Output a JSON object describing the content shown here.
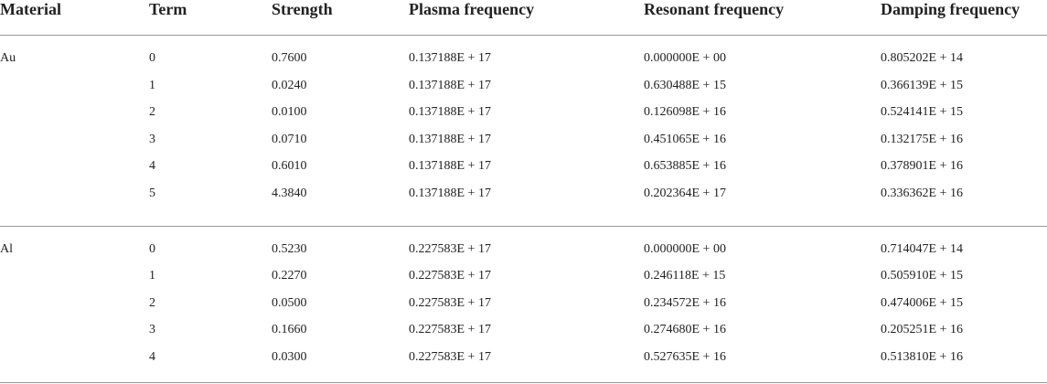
{
  "table": {
    "header": [
      "Material",
      "Term",
      "Strength",
      "Plasma frequency",
      "Resonant frequency",
      "Damping frequency"
    ],
    "groups": [
      {
        "material": "Au",
        "rows": [
          [
            "0",
            "0.7600",
            "0.137188E + 17",
            "0.000000E + 00",
            "0.805202E + 14"
          ],
          [
            "1",
            "0.0240",
            "0.137188E + 17",
            "0.630488E + 15",
            "0.366139E + 15"
          ],
          [
            "2",
            "0.0100",
            "0.137188E + 17",
            "0.126098E + 16",
            "0.524141E + 15"
          ],
          [
            "3",
            "0.0710",
            "0.137188E + 17",
            "0.451065E + 16",
            "0.132175E + 16"
          ],
          [
            "4",
            "0.6010",
            "0.137188E + 17",
            "0.653885E + 16",
            "0.378901E + 16"
          ],
          [
            "5",
            "4.3840",
            "0.137188E + 17",
            "0.202364E + 17",
            "0.336362E + 16"
          ]
        ]
      },
      {
        "material": "Al",
        "rows": [
          [
            "0",
            "0.5230",
            "0.227583E + 17",
            "0.000000E + 00",
            "0.714047E + 14"
          ],
          [
            "1",
            "0.2270",
            "0.227583E + 17",
            "0.246118E + 15",
            "0.505910E + 15"
          ],
          [
            "2",
            "0.0500",
            "0.227583E + 17",
            "0.234572E + 16",
            "0.474006E + 15"
          ],
          [
            "3",
            "0.1660",
            "0.227583E + 17",
            "0.274680E + 16",
            "0.205251E + 16"
          ],
          [
            "4",
            "0.0300",
            "0.227583E + 17",
            "0.527635E + 16",
            "0.513810E + 16"
          ]
        ]
      }
    ]
  }
}
